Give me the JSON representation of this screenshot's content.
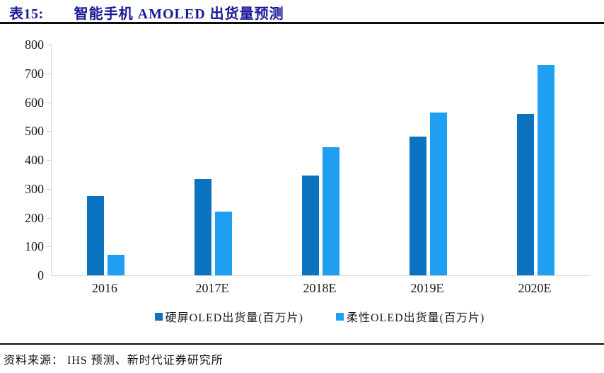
{
  "header": {
    "table_label": "表15:",
    "title": "智能手机 AMOLED 出货量预测"
  },
  "footer": {
    "source": "资料来源： IHS 预测、新时代证券研究所"
  },
  "colors": {
    "title_navy": "#1a1a99",
    "rule_black": "#0d0d0d",
    "axis_gray": "#d9d9d9",
    "series_hard": "#0b73bf",
    "series_flexible": "#1f9ff2"
  },
  "chart_data": {
    "type": "bar",
    "title": "智能手机 AMOLED 出货量预测",
    "categories": [
      "2016",
      "2017E",
      "2018E",
      "2019E",
      "2020E"
    ],
    "series": [
      {
        "name": "硬屏OLED出货量(百万片)",
        "color": "#0b73bf",
        "values": [
          275,
          335,
          345,
          480,
          560
        ]
      },
      {
        "name": "柔性OLED出货量(百万片)",
        "color": "#1f9ff2",
        "values": [
          72,
          220,
          445,
          565,
          730
        ]
      }
    ],
    "xlabel": "",
    "ylabel": "",
    "ylim": [
      0,
      800
    ],
    "ytick_step": 100,
    "grid": false,
    "legend_position": "bottom"
  }
}
